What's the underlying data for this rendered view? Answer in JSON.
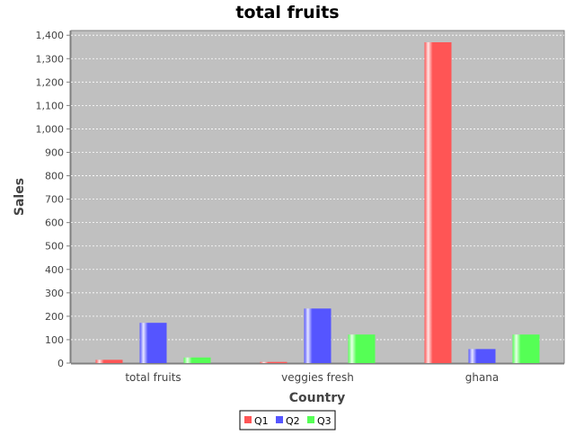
{
  "chart_data": {
    "type": "bar",
    "title": "total fruits",
    "xlabel": "Country",
    "ylabel": "Sales",
    "categories": [
      "total fruits",
      "veggies fresh",
      "ghana"
    ],
    "series": [
      {
        "name": "Q1",
        "values": [
          14,
          5,
          1370
        ]
      },
      {
        "name": "Q2",
        "values": [
          172,
          233,
          60
        ]
      },
      {
        "name": "Q3",
        "values": [
          24,
          122,
          122
        ]
      }
    ],
    "ylim": [
      0,
      1420
    ],
    "yticks": [
      0,
      100,
      200,
      300,
      400,
      500,
      600,
      700,
      800,
      900,
      1000,
      1100,
      1200,
      1300,
      1400
    ],
    "ytick_labels": [
      "0",
      "100",
      "200",
      "300",
      "400",
      "500",
      "600",
      "700",
      "800",
      "900",
      "1,000",
      "1,100",
      "1,200",
      "1,300",
      "1,400"
    ],
    "grid": true,
    "legend_position": "bottom",
    "colors": {
      "plot_background": "#c0c0c0",
      "series": [
        "#ff5555",
        "#5555ff",
        "#55ff55"
      ]
    }
  }
}
